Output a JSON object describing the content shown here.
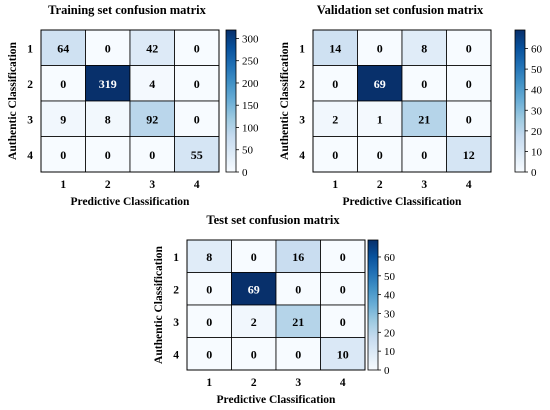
{
  "chart_data": [
    {
      "type": "heatmap",
      "title": "Training set confusion matrix",
      "xlabel": "Predictive Classification",
      "ylabel": "Authentic Classification",
      "x_categories": [
        "1",
        "2",
        "3",
        "4"
      ],
      "y_categories": [
        "1",
        "2",
        "3",
        "4"
      ],
      "values": [
        [
          64,
          0,
          42,
          0
        ],
        [
          0,
          319,
          4,
          0
        ],
        [
          9,
          8,
          92,
          0
        ],
        [
          0,
          0,
          0,
          55
        ]
      ],
      "colorbar": {
        "min": 0,
        "max": 319,
        "ticks": [
          0,
          50,
          100,
          150,
          200,
          250,
          300
        ],
        "tick_labels": [
          "0",
          "50",
          "100",
          "150",
          "200",
          "250",
          "300"
        ]
      },
      "colormap": "Blues",
      "colors": {
        "low": "#f7fbff",
        "high": "#08306b"
      }
    },
    {
      "type": "heatmap",
      "title": "Validation set confusion matrix",
      "xlabel": "Predictive Classification",
      "ylabel": "Authentic Classification",
      "x_categories": [
        "1",
        "2",
        "3",
        "4"
      ],
      "y_categories": [
        "1",
        "2",
        "3",
        "4"
      ],
      "values": [
        [
          14,
          0,
          8,
          0
        ],
        [
          0,
          69,
          0,
          0
        ],
        [
          2,
          1,
          21,
          0
        ],
        [
          0,
          0,
          0,
          12
        ]
      ],
      "colorbar": {
        "min": 0,
        "max": 69,
        "ticks": [
          0,
          10,
          20,
          30,
          40,
          50,
          60
        ],
        "tick_labels": [
          "0",
          "10",
          "20",
          "30",
          "40",
          "50",
          "60"
        ]
      },
      "colormap": "Blues",
      "colors": {
        "low": "#f7fbff",
        "high": "#08306b"
      }
    },
    {
      "type": "heatmap",
      "title": "Test set confusion matrix",
      "xlabel": "Predictive Classification",
      "ylabel": "Authentic Classification",
      "x_categories": [
        "1",
        "2",
        "3",
        "4"
      ],
      "y_categories": [
        "1",
        "2",
        "3",
        "4"
      ],
      "values": [
        [
          8,
          0,
          16,
          0
        ],
        [
          0,
          69,
          0,
          0
        ],
        [
          0,
          2,
          21,
          0
        ],
        [
          0,
          0,
          0,
          10
        ]
      ],
      "colorbar": {
        "min": 0,
        "max": 69,
        "ticks": [
          0,
          10,
          20,
          30,
          40,
          50,
          60
        ],
        "tick_labels": [
          "0",
          "10",
          "20",
          "30",
          "40",
          "50",
          "60"
        ]
      },
      "colormap": "Blues",
      "colors": {
        "low": "#f7fbff",
        "high": "#08306b"
      }
    }
  ]
}
